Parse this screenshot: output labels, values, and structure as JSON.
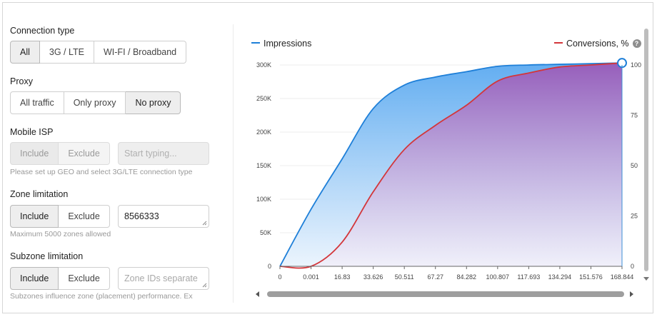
{
  "connection_type": {
    "title": "Connection type",
    "options": [
      "All",
      "3G / LTE",
      "WI-FI / Broadband"
    ],
    "selected": "All"
  },
  "proxy": {
    "title": "Proxy",
    "options": [
      "All traffic",
      "Only proxy",
      "No proxy"
    ],
    "selected": "No proxy"
  },
  "mobile_isp": {
    "title": "Mobile ISP",
    "options": [
      "Include",
      "Exclude"
    ],
    "placeholder": "Start typing...",
    "hint": "Please set up GEO and select 3G/LTE connection type"
  },
  "zone_limitation": {
    "title": "Zone limitation",
    "options": [
      "Include",
      "Exclude"
    ],
    "selected": "Include",
    "value": "8566333",
    "hint": "Maximum 5000 zones allowed"
  },
  "subzone_limitation": {
    "title": "Subzone limitation",
    "options": [
      "Include",
      "Exclude"
    ],
    "selected": "Include",
    "placeholder": "Zone IDs separate",
    "hint": "Subzones influence zone (placement) performance. Ex"
  },
  "colors": {
    "impressions": "#1e7fd8",
    "conversions": "#d3363a",
    "impressions_fill": "#6fb2f2",
    "conversions_fill": "#9b62b8"
  },
  "chart_data": {
    "type": "area",
    "x_ticks": [
      "0",
      "0.001",
      "16.83",
      "33.626",
      "50.511",
      "67.27",
      "84.282",
      "100.807",
      "117.693",
      "134.294",
      "151.576",
      "168.844"
    ],
    "y_left_ticks": [
      "0",
      "50K",
      "100K",
      "150K",
      "200K",
      "250K",
      "300K"
    ],
    "y_right_ticks": [
      "0",
      "25",
      "50",
      "75",
      "100"
    ],
    "y_left_range": [
      0,
      300000
    ],
    "y_right_range": [
      0,
      100
    ],
    "series": [
      {
        "name": "Impressions",
        "axis": "left",
        "values": [
          0,
          85000,
          160000,
          235000,
          270000,
          282000,
          290000,
          298000,
          300000,
          301000,
          302000,
          303000
        ]
      },
      {
        "name": "Conversions, %",
        "axis": "right",
        "values": [
          0,
          0,
          12,
          37,
          58,
          70,
          80,
          92,
          96,
          99,
          100,
          101
        ]
      }
    ],
    "legend": [
      "Impressions",
      "Conversions, %"
    ],
    "legend_position": "top",
    "grid": "horizontal"
  }
}
